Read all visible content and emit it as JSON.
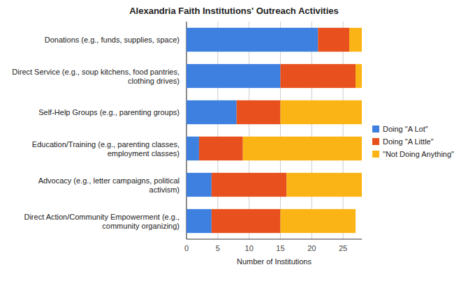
{
  "chart_data": {
    "type": "bar",
    "orientation": "horizontal",
    "stacked": true,
    "title": "Alexandria Faith Institutions' Outreach Activities",
    "x_label": "Number of Institutions",
    "categories": [
      "Donations (e.g., funds, supplies, space)",
      "Direct Service (e.g., soup kitchens, food pantries, clothing drives)",
      "Self-Help Groups (e.g., parenting groups)",
      "Education/Training (e.g., parenting classes, employment classes)",
      "Advocacy (e.g., letter campaigns, political activism)",
      "Direct Action/Community Empowerment (e.g., community organizing)"
    ],
    "series": [
      {
        "name": "Doing \"A Lot\"",
        "color": "#3d80e0",
        "values": [
          21,
          15,
          8,
          2,
          4,
          4
        ]
      },
      {
        "name": "Doing \"A Little\"",
        "color": "#e8511e",
        "values": [
          5,
          12,
          7,
          7,
          12,
          11
        ]
      },
      {
        "name": "\"Not Doing Anything\"",
        "color": "#fbb415",
        "values": [
          2,
          1,
          13,
          19,
          12,
          12
        ]
      }
    ],
    "xlim": [
      0,
      28
    ],
    "xticks": [
      0,
      5,
      10,
      15,
      20,
      25
    ],
    "grid": true,
    "legend": "right"
  }
}
